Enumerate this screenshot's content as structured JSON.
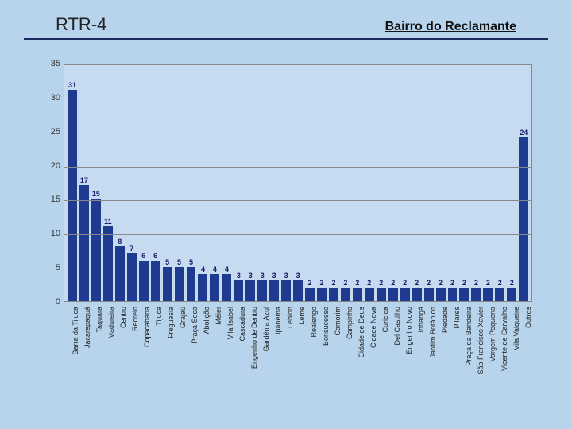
{
  "header": {
    "left": "RTR-4",
    "right": "Bairro do Reclamante"
  },
  "chart": {
    "type": "bar",
    "ylim": [
      0,
      35
    ],
    "ytick_step": 5,
    "bar_color": "#1f3b8f",
    "plot_bg": "#c6dbef",
    "page_bg": "#b8d4ed",
    "grid_color": "#888888",
    "axis_color": "#888888",
    "value_label_color": "#1a1a6a",
    "value_label_fontsize": 9,
    "xlabel_fontsize": 9,
    "xlabel_rotation": -90,
    "categories": [
      "Barra da Tijuca",
      "Jacarepaguá",
      "Taquara",
      "Madureira",
      "Centro",
      "Recreio",
      "Copacabana",
      "Tijuca",
      "Freguesia",
      "Grajaú",
      "Praça Seca",
      "Abolição",
      "Méier",
      "Vila Isabel",
      "Cascadura",
      "Engenho de Dentro",
      "Gardênia Azul",
      "Ipanema",
      "Leblon",
      "Leme",
      "Realengo",
      "Bonsucesso",
      "Camorim",
      "Campinho",
      "Cidade de Deus",
      "Cidade Nova",
      "Curicica",
      "Del Castilho",
      "Engenho Novo",
      "Inhangá",
      "Jardim Botânico",
      "Piedade",
      "Pilares",
      "Praça da Bandeira",
      "São Francisco Xavier",
      "Vargem Pequena",
      "Vicente de Carvalho",
      "Vila Valqueire",
      "Outros"
    ],
    "values": [
      31,
      17,
      15,
      11,
      8,
      7,
      6,
      6,
      5,
      5,
      5,
      4,
      4,
      4,
      3,
      3,
      3,
      3,
      3,
      3,
      2,
      2,
      2,
      2,
      2,
      2,
      2,
      2,
      2,
      2,
      2,
      2,
      2,
      2,
      2,
      2,
      2,
      2,
      24
    ]
  }
}
